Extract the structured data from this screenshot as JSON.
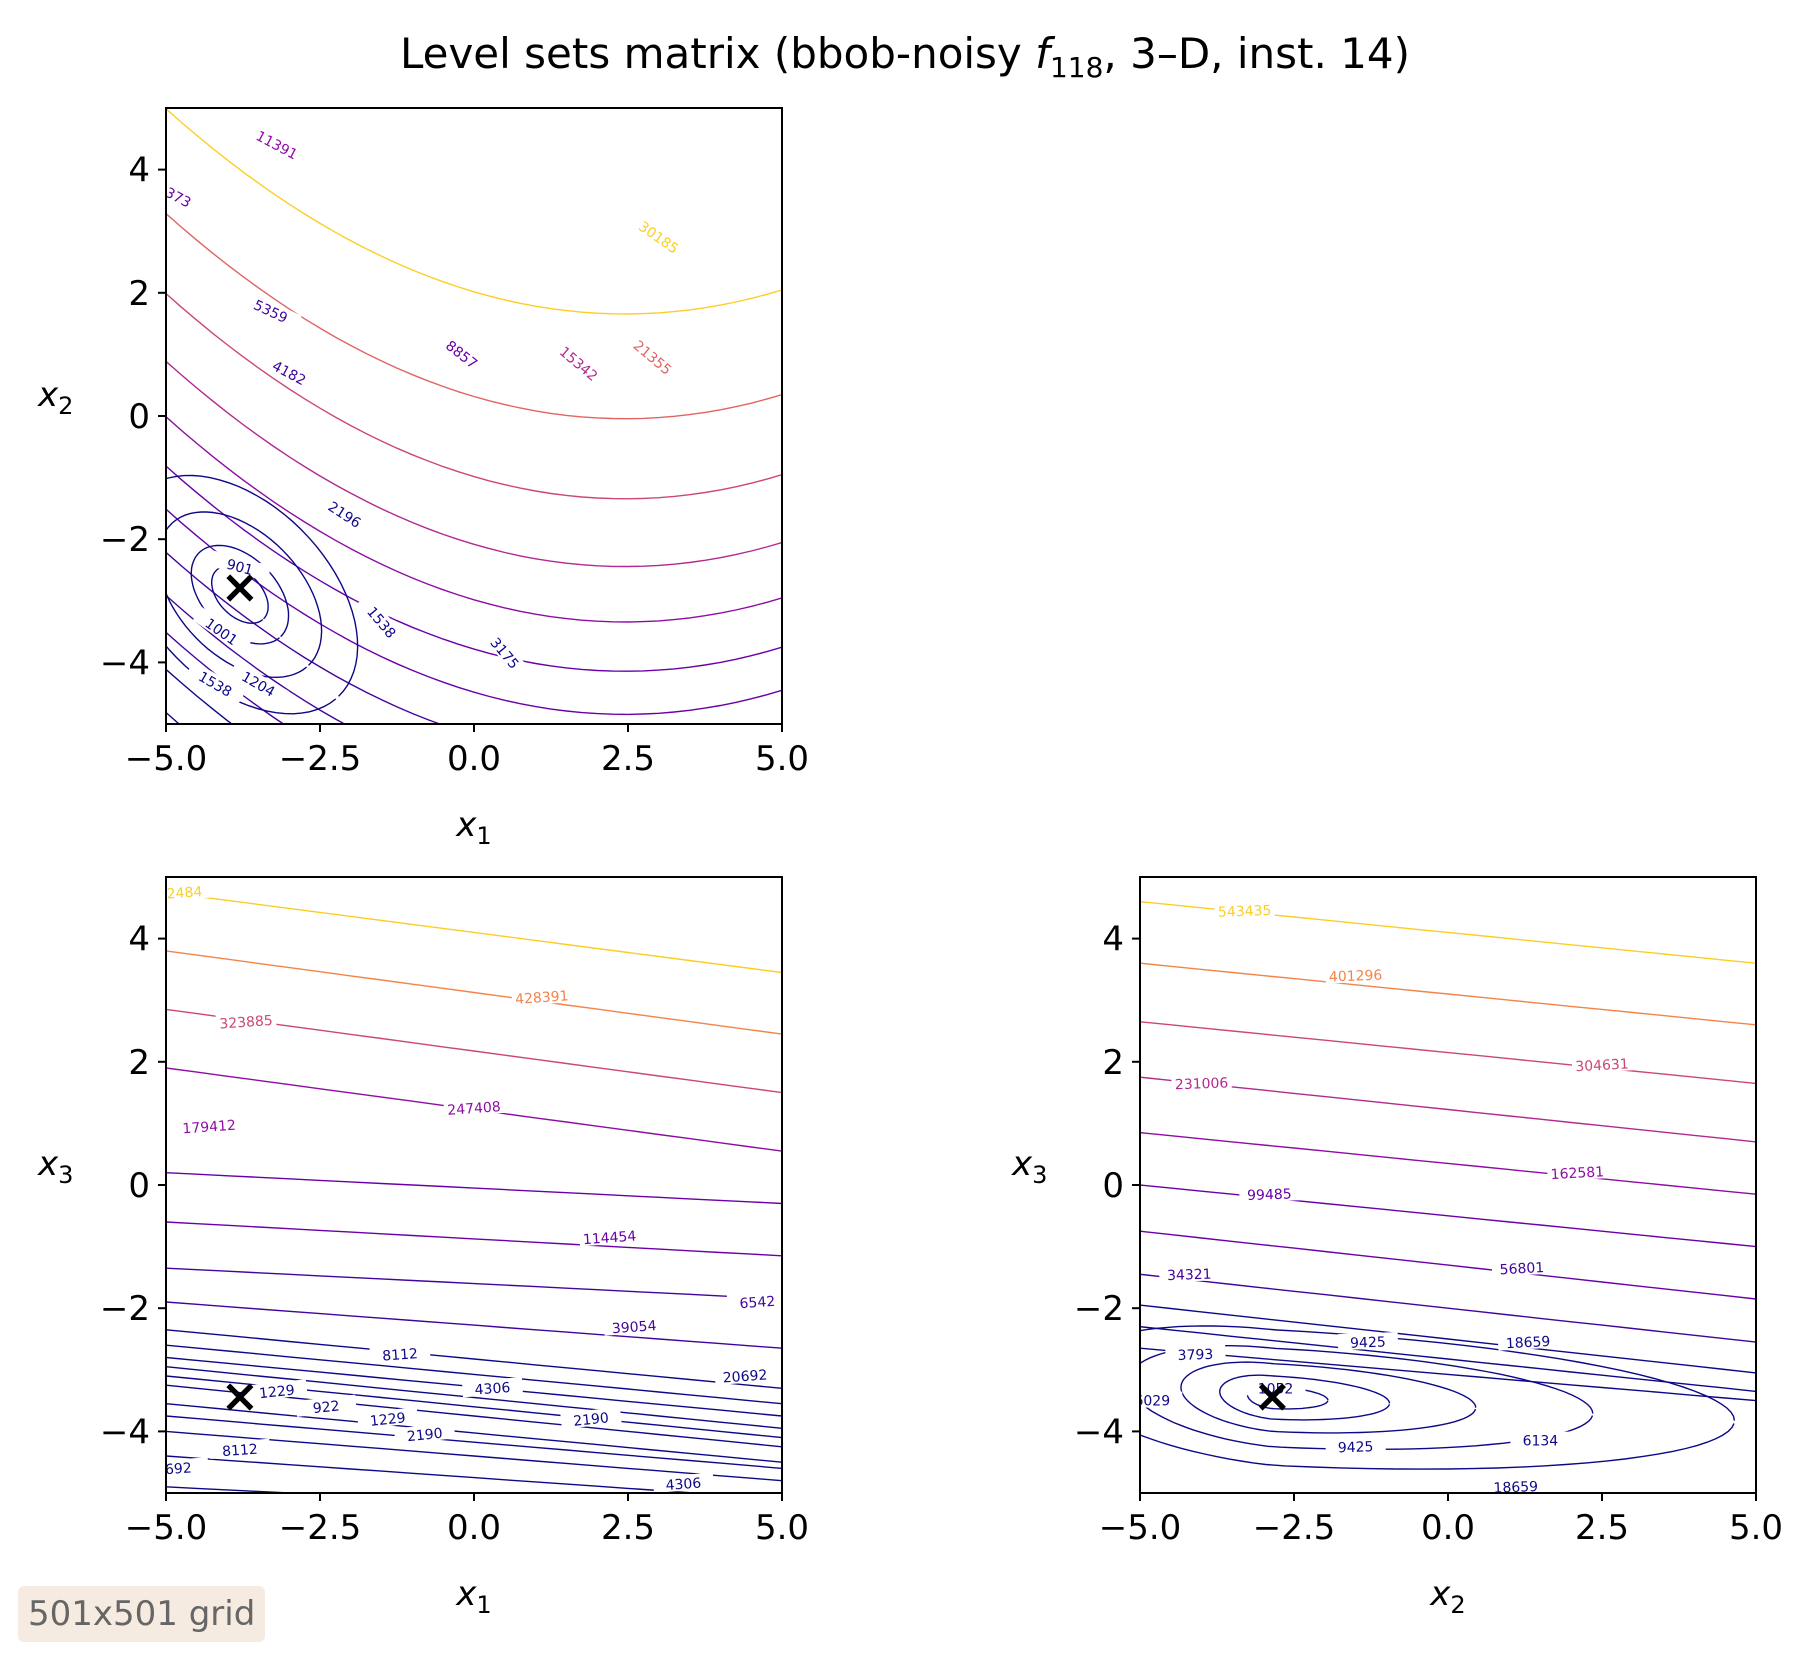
{
  "title": {
    "prefix": "Level sets matrix (bbob-noisy ",
    "func": "f",
    "func_sub": "118",
    "suffix": ", 3–D, inst. 14)"
  },
  "badge": "501x501 grid",
  "marker": "×",
  "colors": {
    "c1": "#0d0887",
    "c2": "#41049d",
    "c3": "#6a00a8",
    "c4": "#8f0da4",
    "c5": "#b12a90",
    "c6": "#cc4778",
    "c7": "#e16462",
    "c8": "#f2844b",
    "c9": "#fca636",
    "c10": "#fcce25",
    "marker": "#000000"
  },
  "chart_data": [
    {
      "type": "contour",
      "name": "x1-x2",
      "xlabel": "x",
      "xlabel_sub": "1",
      "ylabel": "x",
      "ylabel_sub": "2",
      "xlim": [
        -5,
        5
      ],
      "ylim": [
        -5,
        5
      ],
      "xticks": [
        "−5.0",
        "−2.5",
        "0.0",
        "2.5",
        "5.0"
      ],
      "yticks": [
        "−4",
        "−2",
        "0",
        "2",
        "4"
      ],
      "minimum": [
        -3.8,
        -2.8
      ],
      "level_labels": [
        {
          "text": "11391",
          "x": -3.2,
          "y": 4.4,
          "angle": 28,
          "c": "c4"
        },
        {
          "text": "373",
          "x": -4.8,
          "y": 3.55,
          "angle": 28,
          "c": "c3"
        },
        {
          "text": "30185",
          "x": 3.0,
          "y": 2.9,
          "angle": 35,
          "c": "c10"
        },
        {
          "text": "5359",
          "x": -3.3,
          "y": 1.7,
          "angle": 25,
          "c": "c2"
        },
        {
          "text": "8857",
          "x": -0.2,
          "y": 1.0,
          "angle": 38,
          "c": "c3"
        },
        {
          "text": "15342",
          "x": 1.7,
          "y": 0.85,
          "angle": 40,
          "c": "c5"
        },
        {
          "text": "21355",
          "x": 2.9,
          "y": 0.95,
          "angle": 40,
          "c": "c7"
        },
        {
          "text": "4182",
          "x": -3.0,
          "y": 0.7,
          "angle": 28,
          "c": "c2"
        },
        {
          "text": "2196",
          "x": -2.1,
          "y": -1.6,
          "angle": 33,
          "c": "c1"
        },
        {
          "text": "3175",
          "x": 0.5,
          "y": -3.85,
          "angle": 50,
          "c": "c1"
        },
        {
          "text": "1538",
          "x": -1.5,
          "y": -3.35,
          "angle": 50,
          "c": "c1"
        },
        {
          "text": "901",
          "x": -3.8,
          "y": -2.45,
          "angle": 15,
          "c": "c1"
        },
        {
          "text": "1001",
          "x": -4.1,
          "y": -3.5,
          "angle": 35,
          "c": "c1"
        },
        {
          "text": "1204",
          "x": -3.5,
          "y": -4.35,
          "angle": 30,
          "c": "c1"
        },
        {
          "text": "1538",
          "x": -4.2,
          "y": -4.35,
          "angle": 30,
          "c": "c1"
        }
      ]
    },
    {
      "type": "contour",
      "name": "x1-x3",
      "xlabel": "x",
      "xlabel_sub": "1",
      "ylabel": "x",
      "ylabel_sub": "3",
      "xlim": [
        -5,
        5
      ],
      "ylim": [
        -5,
        5
      ],
      "xticks": [
        "−5.0",
        "−2.5",
        "0.0",
        "2.5",
        "5.0"
      ],
      "yticks": [
        "−4",
        "−2",
        "0",
        "2",
        "4"
      ],
      "minimum": [
        -3.8,
        -3.45
      ],
      "level_labels": [
        {
          "text": "2484",
          "x": -4.7,
          "y": 4.75,
          "angle": -4,
          "c": "c10"
        },
        {
          "text": "428391",
          "x": 1.1,
          "y": 3.05,
          "angle": -4,
          "c": "c8"
        },
        {
          "text": "323885",
          "x": -3.7,
          "y": 2.65,
          "angle": -4,
          "c": "c6"
        },
        {
          "text": "247408",
          "x": 0.0,
          "y": 1.25,
          "angle": -4,
          "c": "c4"
        },
        {
          "text": "179412",
          "x": -4.3,
          "y": 0.95,
          "angle": -4,
          "c": "c4"
        },
        {
          "text": "114454",
          "x": 2.2,
          "y": -0.85,
          "angle": -4,
          "c": "c3"
        },
        {
          "text": "6542",
          "x": 4.6,
          "y": -1.9,
          "angle": -4,
          "c": "c2"
        },
        {
          "text": "39054",
          "x": 2.6,
          "y": -2.3,
          "angle": -4,
          "c": "c2"
        },
        {
          "text": "20692",
          "x": 4.4,
          "y": -3.1,
          "angle": -4,
          "c": "c1"
        },
        {
          "text": "8112",
          "x": -1.2,
          "y": -2.75,
          "angle": -4,
          "c": "c1"
        },
        {
          "text": "4306",
          "x": 0.3,
          "y": -3.3,
          "angle": -4,
          "c": "c1"
        },
        {
          "text": "1229",
          "x": -3.2,
          "y": -3.35,
          "angle": -6,
          "c": "c1"
        },
        {
          "text": "922",
          "x": -2.4,
          "y": -3.6,
          "angle": -6,
          "c": "c1"
        },
        {
          "text": "2190",
          "x": 1.9,
          "y": -3.8,
          "angle": -6,
          "c": "c1"
        },
        {
          "text": "1229",
          "x": -1.4,
          "y": -3.8,
          "angle": -6,
          "c": "c1"
        },
        {
          "text": "2190",
          "x": -0.8,
          "y": -4.05,
          "angle": -6,
          "c": "c1"
        },
        {
          "text": "8112",
          "x": -3.8,
          "y": -4.3,
          "angle": -4,
          "c": "c1"
        },
        {
          "text": "692",
          "x": -4.8,
          "y": -4.6,
          "angle": -4,
          "c": "c1"
        },
        {
          "text": "4306",
          "x": 3.4,
          "y": -4.85,
          "angle": -4,
          "c": "c1"
        }
      ]
    },
    {
      "type": "contour",
      "name": "x2-x3",
      "xlabel": "x",
      "xlabel_sub": "2",
      "ylabel": "x",
      "ylabel_sub": "3",
      "xlim": [
        -5,
        5
      ],
      "ylim": [
        -5,
        5
      ],
      "xticks": [
        "−5.0",
        "−2.5",
        "0.0",
        "2.5",
        "5.0"
      ],
      "yticks": [
        "−4",
        "−2",
        "0",
        "2",
        "4"
      ],
      "minimum": [
        -2.85,
        -3.45
      ],
      "level_labels": [
        {
          "text": "543435",
          "x": -3.3,
          "y": 4.45,
          "angle": -2,
          "c": "c10"
        },
        {
          "text": "401296",
          "x": -1.5,
          "y": 3.4,
          "angle": -2,
          "c": "c8"
        },
        {
          "text": "304631",
          "x": 2.5,
          "y": 1.95,
          "angle": -3,
          "c": "c6"
        },
        {
          "text": "231006",
          "x": -4.0,
          "y": 1.65,
          "angle": -2,
          "c": "c5"
        },
        {
          "text": "162581",
          "x": 2.1,
          "y": 0.2,
          "angle": -3,
          "c": "c4"
        },
        {
          "text": "99485",
          "x": -2.9,
          "y": -0.15,
          "angle": -2,
          "c": "c3"
        },
        {
          "text": "56801",
          "x": 1.2,
          "y": -1.35,
          "angle": -3,
          "c": "c2"
        },
        {
          "text": "34321",
          "x": -4.2,
          "y": -1.45,
          "angle": -2,
          "c": "c2"
        },
        {
          "text": "9425",
          "x": -1.3,
          "y": -2.55,
          "angle": -2,
          "c": "c1"
        },
        {
          "text": "18659",
          "x": 1.3,
          "y": -2.55,
          "angle": -3,
          "c": "c1"
        },
        {
          "text": "3793",
          "x": -4.1,
          "y": -2.75,
          "angle": -2,
          "c": "c1"
        },
        {
          "text": "1052",
          "x": -2.8,
          "y": -3.3,
          "angle": 0,
          "c": "c1"
        },
        {
          "text": "6029",
          "x": -4.8,
          "y": -3.5,
          "angle": 0,
          "c": "c1"
        },
        {
          "text": "6134",
          "x": 1.5,
          "y": -4.15,
          "angle": 0,
          "c": "c1"
        },
        {
          "text": "9425",
          "x": -1.5,
          "y": -4.25,
          "angle": -2,
          "c": "c1"
        },
        {
          "text": "18659",
          "x": 1.1,
          "y": -4.9,
          "angle": -2,
          "c": "c1"
        }
      ]
    }
  ]
}
